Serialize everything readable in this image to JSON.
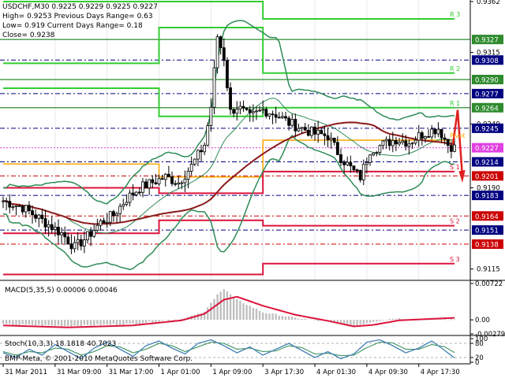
{
  "header": {
    "lines": [
      "USDCHF,M30  0.9225 0.9229 0.9225 0.9227",
      "High= 0.9253     Previous Days Range= 0.63",
      "Low= 0.919     Current Days Range= 0.18",
      "Close= 0.9238"
    ]
  },
  "copyright": "BMP-Meta, © 2001-2010 MetaQuotes Software Corp.",
  "colors": {
    "candle": "#000000",
    "bollinger": "#2e8b57",
    "sma": "#8b1a1a",
    "resistance": "#32cd32",
    "support": "#dc143c",
    "pivot": "#ffa500",
    "navy_line": "#000080",
    "macd_hist": "#c0c0c0",
    "macd_signal": "#dc143c",
    "stoch_main": "#4682b4",
    "stoch_signal": "#2e8b57",
    "arrow": "#e02020",
    "label_green": "#2e8b2e",
    "label_navy": "#000080",
    "label_red": "#cc0000",
    "label_magenta": "#e040e0"
  },
  "chart_data": [
    {
      "type": "candlestick",
      "title": "USDCHF,M30",
      "ylim": [
        0.9106,
        0.9362
      ],
      "price_ticks": [
        "0.9362",
        "0.9315",
        "0.9249",
        "0.9190",
        "0.9115"
      ],
      "time_labels": [
        "31 Mar 2011",
        "31 Mar 09:00",
        "31 Mar 17:00",
        "1 Apr 01:00",
        "1 Apr 09:00",
        "3 Apr 17:30",
        "4 Apr 01:30",
        "4 Apr 09:30",
        "4 Apr 17:30"
      ],
      "candle_count": 140,
      "close_path": [
        [
          0,
          0.9178
        ],
        [
          6,
          0.9172
        ],
        [
          12,
          0.916
        ],
        [
          18,
          0.9148
        ],
        [
          22,
          0.9135
        ],
        [
          26,
          0.9145
        ],
        [
          30,
          0.9158
        ],
        [
          34,
          0.9165
        ],
        [
          38,
          0.918
        ],
        [
          42,
          0.919
        ],
        [
          46,
          0.9195
        ],
        [
          50,
          0.92
        ],
        [
          54,
          0.9195
        ],
        [
          58,
          0.921
        ],
        [
          62,
          0.923
        ],
        [
          64,
          0.9265
        ],
        [
          66,
          0.933
        ],
        [
          68,
          0.931
        ],
        [
          70,
          0.926
        ],
        [
          72,
          0.9265
        ],
        [
          76,
          0.9255
        ],
        [
          80,
          0.9262
        ],
        [
          84,
          0.9258
        ],
        [
          88,
          0.925
        ],
        [
          92,
          0.9245
        ],
        [
          96,
          0.924
        ],
        [
          100,
          0.9238
        ],
        [
          104,
          0.9218
        ],
        [
          108,
          0.9205
        ],
        [
          110,
          0.92
        ],
        [
          113,
          0.9225
        ],
        [
          117,
          0.923
        ],
        [
          121,
          0.9235
        ],
        [
          125,
          0.9232
        ],
        [
          128,
          0.9238
        ],
        [
          131,
          0.9242
        ],
        [
          134,
          0.9245
        ],
        [
          137,
          0.923
        ],
        [
          139,
          0.9227
        ]
      ],
      "levels": [
        {
          "name": "R3",
          "label": "R 3",
          "type": "resistance",
          "value": 0.9346
        },
        {
          "name": "R2",
          "label": "R 2",
          "type": "resistance",
          "value": 0.9296
        },
        {
          "name": "R1",
          "label": "R 1",
          "type": "resistance",
          "value": 0.9264
        },
        {
          "name": "PP",
          "label": "Pivot",
          "type": "pivot",
          "value": 0.9234
        },
        {
          "name": "S1",
          "label": "S 1",
          "type": "support",
          "value": 0.9205
        },
        {
          "name": "S2",
          "label": "S 2",
          "type": "support",
          "value": 0.9155
        },
        {
          "name": "S3",
          "label": "S 3",
          "type": "support",
          "value": 0.912
        }
      ],
      "price_labels": [
        {
          "text": "0.9327",
          "kind": "green"
        },
        {
          "text": "0.9308",
          "kind": "navy"
        },
        {
          "text": "0.9290",
          "kind": "green"
        },
        {
          "text": "0.9277",
          "kind": "navy"
        },
        {
          "text": "0.9264",
          "kind": "green"
        },
        {
          "text": "0.9245",
          "kind": "navy"
        },
        {
          "text": "0.9227",
          "kind": "magenta"
        },
        {
          "text": "0.9214",
          "kind": "navy"
        },
        {
          "text": "0.9201",
          "kind": "red"
        },
        {
          "text": "0.9183",
          "kind": "navy"
        },
        {
          "text": "0.9164",
          "kind": "red"
        },
        {
          "text": "0.9151",
          "kind": "navy"
        },
        {
          "text": "0.9138",
          "kind": "red"
        }
      ]
    },
    {
      "type": "bar",
      "title": "MACD(5,35,5) 0.00006 0.00046",
      "ylim": [
        -0.00279,
        0.00722
      ],
      "ticks": [
        "0.00722",
        "0.00",
        "-0.00279"
      ],
      "hist_path": [
        [
          0,
          -0.0009
        ],
        [
          20,
          -0.0012
        ],
        [
          40,
          -0.0008
        ],
        [
          55,
          0.0002
        ],
        [
          62,
          0.0015
        ],
        [
          66,
          0.0052
        ],
        [
          68,
          0.0061
        ],
        [
          72,
          0.004
        ],
        [
          80,
          0.0015
        ],
        [
          90,
          0.0004
        ],
        [
          100,
          -0.0004
        ],
        [
          108,
          -0.0012
        ],
        [
          112,
          -0.0006
        ],
        [
          120,
          0.0003
        ],
        [
          139,
          0.0001
        ]
      ],
      "signal_path": [
        [
          0,
          -0.0011
        ],
        [
          20,
          -0.0015
        ],
        [
          40,
          -0.0011
        ],
        [
          55,
          -0.0001
        ],
        [
          62,
          0.0012
        ],
        [
          68,
          0.004
        ],
        [
          72,
          0.0046
        ],
        [
          80,
          0.0028
        ],
        [
          90,
          0.001
        ],
        [
          100,
          -0.0002
        ],
        [
          108,
          -0.0013
        ],
        [
          114,
          -0.001
        ],
        [
          122,
          -0.0001
        ],
        [
          139,
          0.0004
        ]
      ]
    },
    {
      "type": "line",
      "title": "Stoch(10,3,3) 18.1818 40.7023",
      "ylim": [
        0,
        100
      ],
      "ticks": [
        "100",
        "80",
        "20",
        "0"
      ],
      "main_path": [
        [
          0,
          40
        ],
        [
          4,
          20
        ],
        [
          8,
          55
        ],
        [
          12,
          30
        ],
        [
          16,
          75
        ],
        [
          20,
          45
        ],
        [
          24,
          15
        ],
        [
          28,
          60
        ],
        [
          32,
          85
        ],
        [
          36,
          55
        ],
        [
          40,
          25
        ],
        [
          44,
          70
        ],
        [
          48,
          90
        ],
        [
          52,
          60
        ],
        [
          56,
          35
        ],
        [
          60,
          80
        ],
        [
          64,
          95
        ],
        [
          68,
          70
        ],
        [
          72,
          40
        ],
        [
          76,
          65
        ],
        [
          80,
          30
        ],
        [
          84,
          55
        ],
        [
          88,
          80
        ],
        [
          92,
          50
        ],
        [
          96,
          20
        ],
        [
          100,
          45
        ],
        [
          104,
          15
        ],
        [
          108,
          35
        ],
        [
          112,
          85
        ],
        [
          116,
          95
        ],
        [
          120,
          70
        ],
        [
          124,
          40
        ],
        [
          128,
          60
        ],
        [
          132,
          90
        ],
        [
          136,
          50
        ],
        [
          139,
          18
        ]
      ],
      "signal_path": [
        [
          0,
          45
        ],
        [
          4,
          30
        ],
        [
          8,
          45
        ],
        [
          12,
          40
        ],
        [
          16,
          60
        ],
        [
          20,
          55
        ],
        [
          24,
          30
        ],
        [
          28,
          45
        ],
        [
          32,
          70
        ],
        [
          36,
          65
        ],
        [
          40,
          40
        ],
        [
          44,
          55
        ],
        [
          48,
          80
        ],
        [
          52,
          70
        ],
        [
          56,
          45
        ],
        [
          60,
          65
        ],
        [
          64,
          85
        ],
        [
          68,
          80
        ],
        [
          72,
          55
        ],
        [
          76,
          60
        ],
        [
          80,
          45
        ],
        [
          84,
          48
        ],
        [
          88,
          70
        ],
        [
          92,
          62
        ],
        [
          96,
          35
        ],
        [
          100,
          38
        ],
        [
          104,
          28
        ],
        [
          108,
          30
        ],
        [
          112,
          62
        ],
        [
          116,
          85
        ],
        [
          120,
          82
        ],
        [
          124,
          55
        ],
        [
          128,
          55
        ],
        [
          132,
          75
        ],
        [
          136,
          65
        ],
        [
          139,
          41
        ]
      ]
    }
  ]
}
